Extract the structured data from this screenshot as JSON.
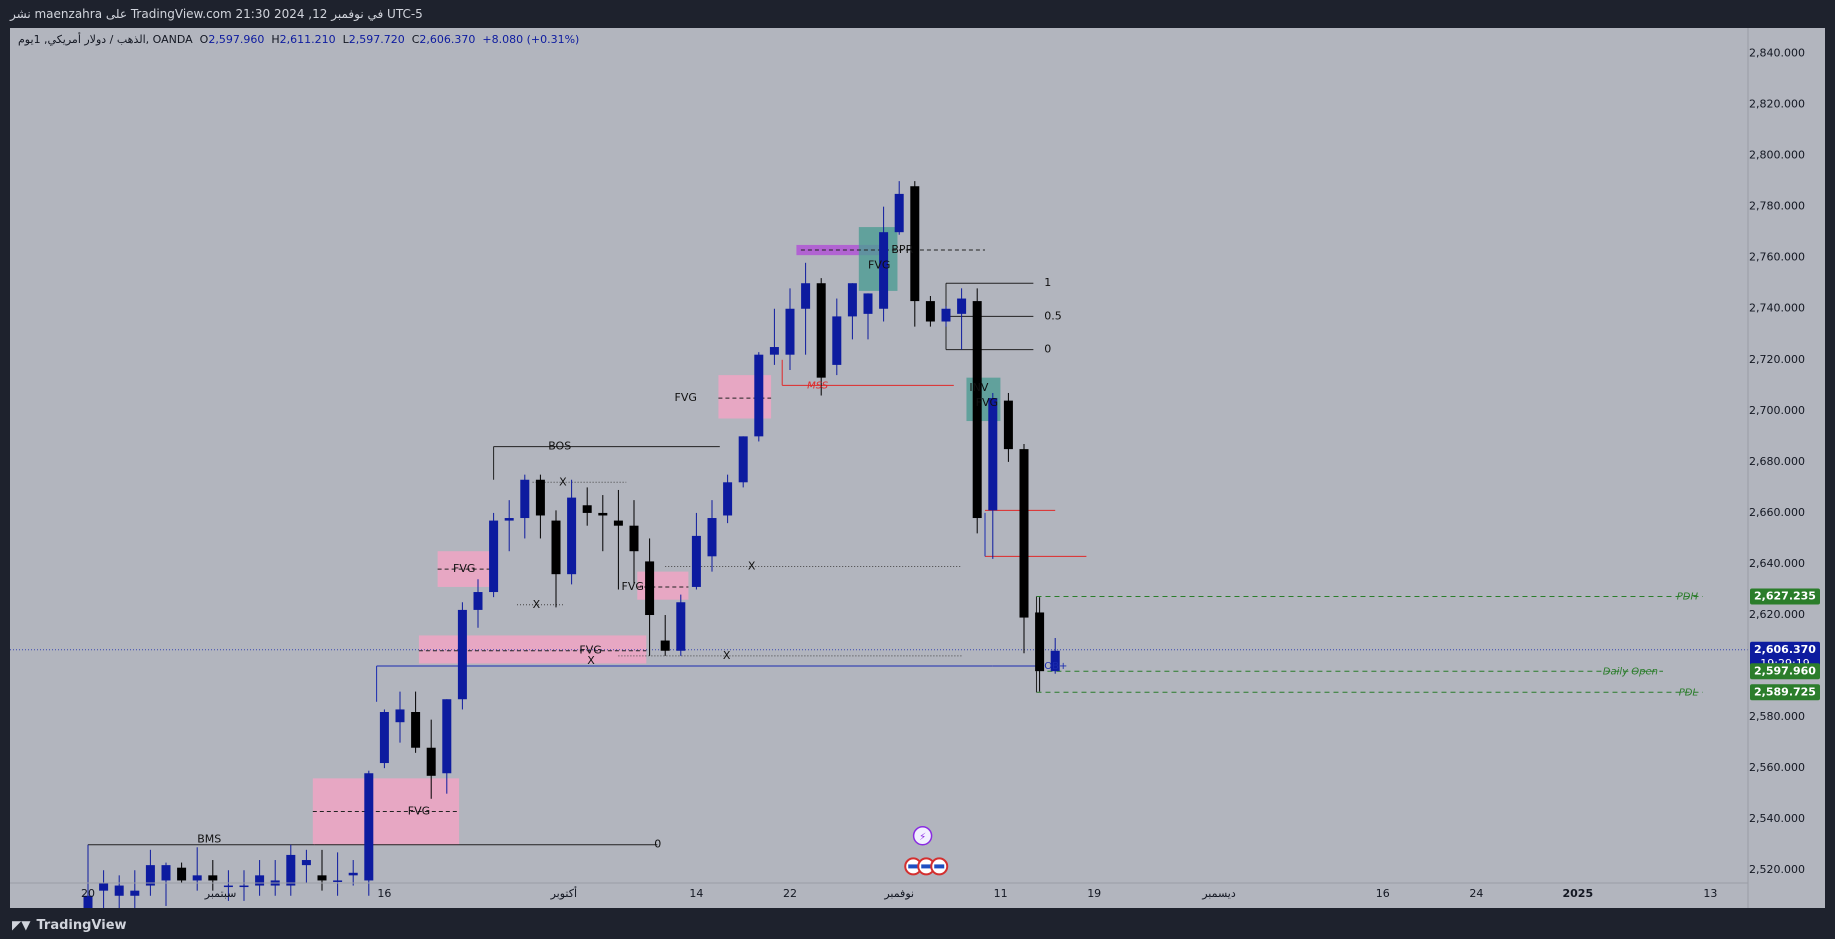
{
  "header": {
    "publish_text": "نشر maenzahra على TradingView.com في نوفمبر 12, 2024 21:30 UTC-5"
  },
  "legend": {
    "symbol": "الذهب / دولار أمريكي, 1يوم, OANDA",
    "open_label": "O",
    "open": "2,597.960",
    "high_label": "H",
    "high": "2,611.210",
    "low_label": "L",
    "low": "2,597.720",
    "close_label": "C",
    "close": "2,606.370",
    "change": "+8.080 (+0.31%)"
  },
  "footer": {
    "brand": "TradingView",
    "logo_icon": "tradingview-logo-icon"
  },
  "chart_data": {
    "type": "candlestick",
    "symbol": "XAUUSD",
    "interval": "1D",
    "ylim": [
      2515,
      2850
    ],
    "y_ticks": [
      {
        "v": 2840,
        "label": "2,840.000"
      },
      {
        "v": 2820,
        "label": "2,820.000"
      },
      {
        "v": 2800,
        "label": "2,800.000"
      },
      {
        "v": 2780,
        "label": "2,780.000"
      },
      {
        "v": 2760,
        "label": "2,760.000"
      },
      {
        "v": 2740,
        "label": "2,740.000"
      },
      {
        "v": 2720,
        "label": "2,720.000"
      },
      {
        "v": 2700,
        "label": "2,700.000"
      },
      {
        "v": 2680,
        "label": "2,680.000"
      },
      {
        "v": 2660,
        "label": "2,660.000"
      },
      {
        "v": 2640,
        "label": "2,640.000"
      },
      {
        "v": 2620,
        "label": "2,620.000"
      },
      {
        "v": 2580,
        "label": "2,580.000"
      },
      {
        "v": 2560,
        "label": "2,560.000"
      },
      {
        "v": 2540,
        "label": "2,540.000"
      },
      {
        "v": 2520,
        "label": "2,520.000"
      }
    ],
    "x_ticks": [
      {
        "idx": 0,
        "label": "20"
      },
      {
        "idx": 8.5,
        "label": "سبتمبر"
      },
      {
        "idx": 19,
        "label": "16"
      },
      {
        "idx": 30.5,
        "label": "أكتوبر"
      },
      {
        "idx": 39,
        "label": "14"
      },
      {
        "idx": 45,
        "label": "22"
      },
      {
        "idx": 52,
        "label": "نوفمبر"
      },
      {
        "idx": 58.5,
        "label": "11"
      },
      {
        "idx": 64.5,
        "label": "19"
      },
      {
        "idx": 72.5,
        "label": "ديسمبر"
      },
      {
        "idx": 83,
        "label": "16"
      },
      {
        "idx": 89,
        "label": "24"
      },
      {
        "idx": 95.5,
        "label": "2025",
        "bold": true
      },
      {
        "idx": 104,
        "label": "13"
      }
    ],
    "candles": [
      {
        "o": 2505,
        "h": 2530,
        "l": 2500,
        "c": 2510
      },
      {
        "o": 2512,
        "h": 2520,
        "l": 2505,
        "c": 2515
      },
      {
        "o": 2510,
        "h": 2518,
        "l": 2502,
        "c": 2514
      },
      {
        "o": 2510,
        "h": 2520,
        "l": 2505,
        "c": 2512
      },
      {
        "o": 2514,
        "h": 2528,
        "l": 2510,
        "c": 2522
      },
      {
        "o": 2516,
        "h": 2523,
        "l": 2506,
        "c": 2522
      },
      {
        "o": 2521,
        "h": 2523,
        "l": 2515,
        "c": 2516
      },
      {
        "o": 2516,
        "h": 2529,
        "l": 2512,
        "c": 2518
      },
      {
        "o": 2518,
        "h": 2524,
        "l": 2512,
        "c": 2516
      },
      {
        "o": 2514,
        "h": 2520,
        "l": 2508,
        "c": 2514
      },
      {
        "o": 2514,
        "h": 2520,
        "l": 2508,
        "c": 2514
      },
      {
        "o": 2514,
        "h": 2524,
        "l": 2510,
        "c": 2518
      },
      {
        "o": 2514,
        "h": 2524,
        "l": 2510,
        "c": 2516
      },
      {
        "o": 2514,
        "h": 2530,
        "l": 2510,
        "c": 2526
      },
      {
        "o": 2522,
        "h": 2528,
        "l": 2515,
        "c": 2524
      },
      {
        "o": 2518,
        "h": 2528,
        "l": 2512,
        "c": 2516
      },
      {
        "o": 2516,
        "h": 2527,
        "l": 2510,
        "c": 2516
      },
      {
        "o": 2518,
        "h": 2524,
        "l": 2514,
        "c": 2519
      },
      {
        "o": 2516,
        "h": 2559,
        "l": 2510,
        "c": 2558
      },
      {
        "o": 2562,
        "h": 2583,
        "l": 2560,
        "c": 2582
      },
      {
        "o": 2578,
        "h": 2590,
        "l": 2570,
        "c": 2583
      },
      {
        "o": 2582,
        "h": 2590,
        "l": 2566,
        "c": 2568
      },
      {
        "o": 2568,
        "h": 2579,
        "l": 2548,
        "c": 2557
      },
      {
        "o": 2558,
        "h": 2587,
        "l": 2550,
        "c": 2587
      },
      {
        "o": 2587,
        "h": 2625,
        "l": 2583,
        "c": 2622
      },
      {
        "o": 2622,
        "h": 2634,
        "l": 2615,
        "c": 2629
      },
      {
        "o": 2629,
        "h": 2660,
        "l": 2627,
        "c": 2657
      },
      {
        "o": 2657,
        "h": 2665,
        "l": 2645,
        "c": 2658
      },
      {
        "o": 2658,
        "h": 2675,
        "l": 2650,
        "c": 2673
      },
      {
        "o": 2673,
        "h": 2675,
        "l": 2650,
        "c": 2659
      },
      {
        "o": 2657,
        "h": 2661,
        "l": 2623,
        "c": 2636
      },
      {
        "o": 2636,
        "h": 2673,
        "l": 2632,
        "c": 2666
      },
      {
        "o": 2663,
        "h": 2670,
        "l": 2655,
        "c": 2660
      },
      {
        "o": 2660,
        "h": 2667,
        "l": 2645,
        "c": 2659
      },
      {
        "o": 2657,
        "h": 2669,
        "l": 2630,
        "c": 2655
      },
      {
        "o": 2655,
        "h": 2665,
        "l": 2632,
        "c": 2645
      },
      {
        "o": 2641,
        "h": 2650,
        "l": 2604,
        "c": 2620
      },
      {
        "o": 2610,
        "h": 2620,
        "l": 2604,
        "c": 2606
      },
      {
        "o": 2606,
        "h": 2628,
        "l": 2604,
        "c": 2625
      },
      {
        "o": 2631,
        "h": 2660,
        "l": 2630,
        "c": 2651
      },
      {
        "o": 2643,
        "h": 2665,
        "l": 2637,
        "c": 2658
      },
      {
        "o": 2659,
        "h": 2675,
        "l": 2656,
        "c": 2672
      },
      {
        "o": 2672,
        "h": 2690,
        "l": 2670,
        "c": 2690
      },
      {
        "o": 2690,
        "h": 2723,
        "l": 2688,
        "c": 2722
      },
      {
        "o": 2722,
        "h": 2740,
        "l": 2718,
        "c": 2725
      },
      {
        "o": 2722,
        "h": 2748,
        "l": 2716,
        "c": 2740
      },
      {
        "o": 2740,
        "h": 2758,
        "l": 2722,
        "c": 2750
      },
      {
        "o": 2750,
        "h": 2752,
        "l": 2706,
        "c": 2713
      },
      {
        "o": 2718,
        "h": 2744,
        "l": 2714,
        "c": 2737
      },
      {
        "o": 2737,
        "h": 2750,
        "l": 2728,
        "c": 2750
      },
      {
        "o": 2738,
        "h": 2746,
        "l": 2728,
        "c": 2746
      },
      {
        "o": 2740,
        "h": 2780,
        "l": 2735,
        "c": 2770
      },
      {
        "o": 2770,
        "h": 2790,
        "l": 2769,
        "c": 2785
      },
      {
        "o": 2788,
        "h": 2790,
        "l": 2733,
        "c": 2743
      },
      {
        "o": 2743,
        "h": 2745,
        "l": 2733,
        "c": 2735
      },
      {
        "o": 2735,
        "h": 2741,
        "l": 2733,
        "c": 2740
      },
      {
        "o": 2738,
        "h": 2748,
        "l": 2724,
        "c": 2744
      },
      {
        "o": 2743,
        "h": 2748,
        "l": 2652,
        "c": 2658
      },
      {
        "o": 2661,
        "h": 2707,
        "l": 2642,
        "c": 2705
      },
      {
        "o": 2704,
        "h": 2707,
        "l": 2680,
        "c": 2685
      },
      {
        "o": 2685,
        "h": 2687,
        "l": 2605,
        "c": 2619
      },
      {
        "o": 2621,
        "h": 2627,
        "l": 2590,
        "c": 2598
      },
      {
        "o": 2598,
        "h": 2611,
        "l": 2597,
        "c": 2606
      }
    ],
    "annotations": {
      "fvg_label": "FVG",
      "bos_label": "BOS",
      "bms_label": "BMS",
      "mss_label": "MSS",
      "bpr_label": "BPR",
      "inv_label": "INV",
      "x_label": "X",
      "ob_label": "OB+",
      "fib_1": "1",
      "fib_05": "0.5",
      "fib_0": "0",
      "zero_label": "0",
      "pdh_label": "PDH",
      "daily_open_label": "Daily Open",
      "pdl_label": "PDL"
    },
    "price_tags": {
      "pdh": {
        "value": 2627.235,
        "label": "2,627.235"
      },
      "last": {
        "value": 2606.37,
        "label": "2,606.370",
        "countdown": "19:29:19"
      },
      "daily_open": {
        "value": 2597.96,
        "label": "2,597.960"
      },
      "pdl": {
        "value": 2589.725,
        "label": "2,589.725"
      }
    },
    "colors": {
      "bg": "#b2b5be",
      "up": "#0d1b9f",
      "down": "#000000",
      "fvg_zone": "#f0a4c4",
      "bpr_zone": "#b05ad4",
      "inv_zone": "#4c9c94",
      "mss_line": "#e02828",
      "level_green": "#2b7d2b",
      "ob_line": "#1a2bb0"
    }
  }
}
